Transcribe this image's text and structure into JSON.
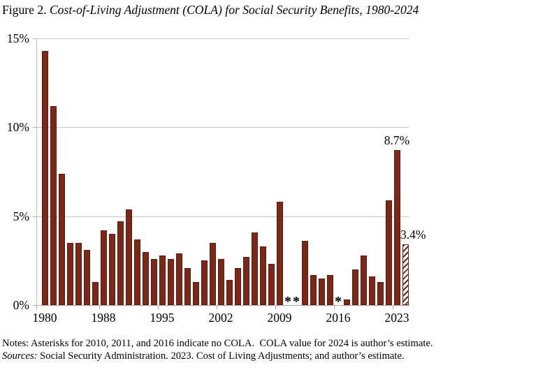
{
  "title": {
    "prefix": "Figure 2. ",
    "italic_text": "Cost-of-Living Adjustment (COLA) for Social Security Benefits, 1980-2024"
  },
  "chart_data": {
    "type": "bar",
    "title": "Cost-of-Living Adjustment (COLA) for Social Security Benefits, 1980-2024",
    "xlabel": "",
    "ylabel": "",
    "ylim": [
      0,
      15
    ],
    "grid": true,
    "categories": [
      "1980",
      "1981",
      "1982",
      "1984",
      "1985",
      "1986",
      "1987",
      "1988",
      "1989",
      "1990",
      "1991",
      "1992",
      "1993",
      "1994",
      "1995",
      "1996",
      "1997",
      "1998",
      "1999",
      "2000",
      "2001",
      "2002",
      "2003",
      "2004",
      "2005",
      "2006",
      "2007",
      "2008",
      "2009",
      "2010",
      "2011",
      "2012",
      "2013",
      "2014",
      "2015",
      "2016",
      "2017",
      "2018",
      "2019",
      "2020",
      "2021",
      "2022",
      "2023",
      "2024"
    ],
    "values": [
      14.3,
      11.2,
      7.4,
      3.5,
      3.5,
      3.1,
      1.3,
      4.2,
      4.0,
      4.7,
      5.4,
      3.7,
      3.0,
      2.6,
      2.8,
      2.6,
      2.9,
      2.1,
      1.3,
      2.5,
      3.5,
      2.6,
      1.4,
      2.1,
      2.7,
      4.1,
      3.3,
      2.3,
      5.8,
      null,
      null,
      3.6,
      1.7,
      1.5,
      1.7,
      null,
      0.3,
      2.0,
      2.8,
      1.6,
      1.3,
      5.9,
      8.7,
      3.4
    ],
    "no_cola_marker": "*",
    "no_cola_years": [
      "2010",
      "2011",
      "2016"
    ],
    "estimate_year": "2024",
    "ytick_values": [
      0,
      5,
      10,
      15
    ],
    "ytick_labels": [
      "0%",
      "5%",
      "10%",
      "15%"
    ],
    "xtick_indices": [
      0,
      7,
      14,
      21,
      28,
      35,
      42
    ],
    "xtick_labels": [
      "1980",
      "1988",
      "1995",
      "2002",
      "2009",
      "2016",
      "2023"
    ],
    "annotations": [
      {
        "text": "8.7%",
        "index": 42,
        "placement": "center-above"
      },
      {
        "text": "3.4%",
        "index": 43,
        "placement": "right-above"
      }
    ],
    "bar_color": "#7b2818",
    "hatch_color": "#7a2318"
  },
  "notes_line": "Notes: Asterisks for 2010, 2011, and 2016 indicate no COLA.  COLA value for 2024 is author’s estimate.",
  "sources_label": "Sources:",
  "sources_text": " Social Security Administration. 2023. Cost of Living Adjustments; and author’s estimate."
}
